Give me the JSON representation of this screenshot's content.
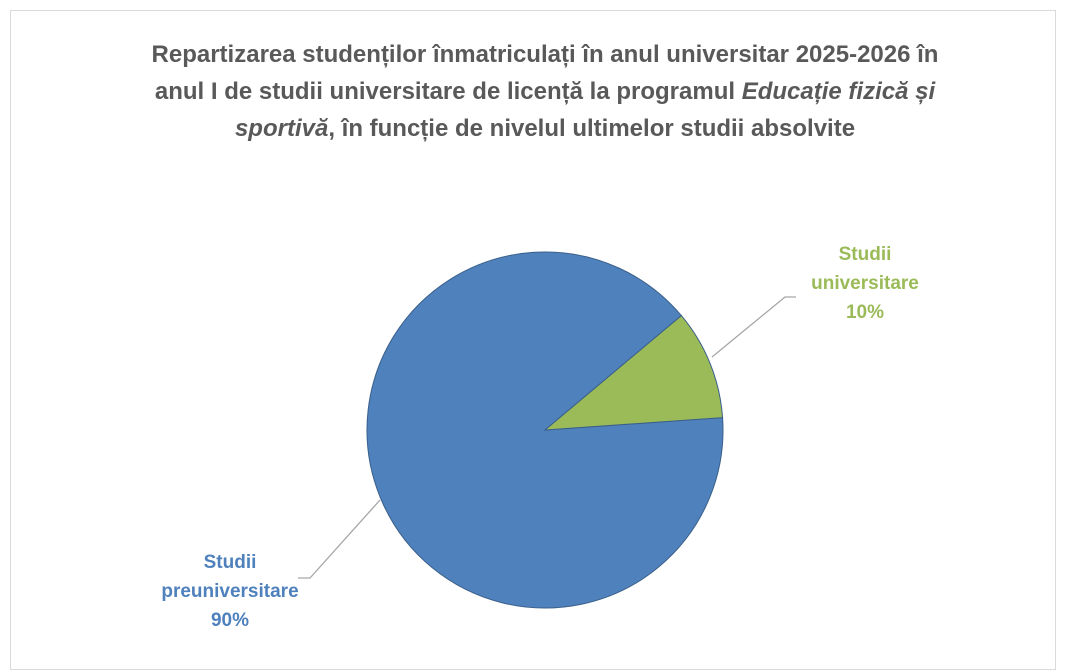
{
  "chart_data": {
    "type": "pie",
    "title": [
      "Repartizarea studenților înmatriculați în anul universitar 2025-2026 în anul I de studii universitare de licență la programul ",
      "Educație fizică și sportivă",
      ", în funcție de nivelul ultimelor studii absolvite"
    ],
    "categories": [
      "Studii preuniversitare",
      "Studii universitare"
    ],
    "values": [
      90,
      10
    ],
    "value_labels": [
      "90%",
      "10%"
    ],
    "colors": [
      "#4f81bd",
      "#9bbb59"
    ],
    "first_slice_angle": 86
  }
}
